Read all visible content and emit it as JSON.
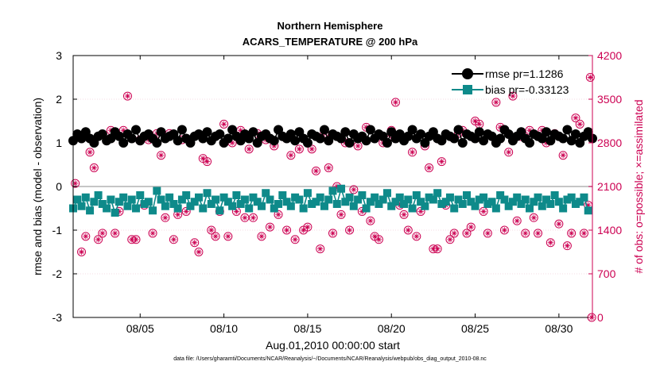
{
  "chart_data": {
    "type": "line",
    "title": [
      "Northern Hemisphere",
      "ACARS_TEMPERATURE @ 200 hPa"
    ],
    "xlabel": "Aug.01,2010 00:00:00 start",
    "ylabel_left": "rmse and bias (model - observation)",
    "ylabel_right": "# of obs: o=possible; ×=assimilated",
    "x_range": [
      "2010-08-01",
      "2010-08-32"
    ],
    "ylim_left": [
      -3,
      3
    ],
    "ylim_right": [
      0,
      4200
    ],
    "yticks_left": [
      "3",
      "2",
      "1",
      "0",
      "-1",
      "-2",
      "-3"
    ],
    "yticks_right": [
      "4200",
      "3500",
      "2800",
      "2100",
      "1400",
      "700",
      "0"
    ],
    "xticks": [
      {
        "x": "2010-08-05",
        "label": "08/05"
      },
      {
        "x": "2010-08-10",
        "label": "08/10"
      },
      {
        "x": "2010-08-15",
        "label": "08/15"
      },
      {
        "x": "2010-08-20",
        "label": "08/20"
      },
      {
        "x": "2010-08-25",
        "label": "08/25"
      },
      {
        "x": "2010-08-30",
        "label": "08/30"
      }
    ],
    "legend_position": "top-right",
    "series": [
      {
        "name": "rmse pr=1.1286",
        "axis": "left",
        "x_start": "2010-08-01",
        "step_days": 0.25,
        "values": [
          1.05,
          1.2,
          1.1,
          1.25,
          1.1,
          1.0,
          1.15,
          1.2,
          1.05,
          1.1,
          1.25,
          1.15,
          1.0,
          1.2,
          1.1,
          1.3,
          1.05,
          1.15,
          1.2,
          1.1,
          1.0,
          1.25,
          1.1,
          1.15,
          1.2,
          1.05,
          1.3,
          1.1,
          1.0,
          1.15,
          1.2,
          1.1,
          1.25,
          1.05,
          1.15,
          1.2,
          1.0,
          1.1,
          1.3,
          1.15,
          1.05,
          1.2,
          1.1,
          1.25,
          1.0,
          1.15,
          1.2,
          1.1,
          1.05,
          1.3,
          1.15,
          1.1,
          1.2,
          1.05,
          1.25,
          1.1,
          1.0,
          1.2,
          1.15,
          1.1,
          1.3,
          1.05,
          1.2,
          1.15,
          1.1,
          1.25,
          1.0,
          1.2,
          1.1,
          1.15,
          1.05,
          1.3,
          1.1,
          1.2,
          1.15,
          1.0,
          1.25,
          1.1,
          1.2,
          1.05,
          1.15,
          1.3,
          1.1,
          1.2,
          1.0,
          1.15,
          1.25,
          1.1,
          1.05,
          1.2,
          1.15,
          1.1,
          1.3,
          1.0,
          1.2,
          1.15,
          1.1,
          1.25,
          1.05,
          1.2,
          1.15,
          1.0,
          1.1,
          1.3,
          1.2,
          1.05,
          1.15,
          1.25,
          1.1,
          1.0,
          1.2,
          1.15,
          1.1,
          1.25,
          1.05,
          1.2,
          1.15,
          1.1,
          1.3,
          1.05,
          1.2,
          1.0,
          1.15,
          1.25,
          1.1
        ]
      },
      {
        "name": "bias pr=-0.33123",
        "axis": "left",
        "x_start": "2010-08-01",
        "step_days": 0.25,
        "values": [
          -0.5,
          -0.3,
          -0.45,
          -0.25,
          -0.55,
          -0.35,
          -0.2,
          -0.4,
          -0.5,
          -0.3,
          -0.6,
          -0.35,
          -0.25,
          -0.45,
          -0.3,
          -0.5,
          -0.2,
          -0.4,
          -0.35,
          -0.55,
          -0.1,
          -0.3,
          -0.45,
          -0.25,
          -0.4,
          -0.5,
          -0.3,
          -0.2,
          -0.45,
          -0.35,
          -0.25,
          -0.5,
          -0.15,
          -0.4,
          -0.3,
          -0.55,
          -0.25,
          -0.35,
          -0.45,
          -0.2,
          -0.4,
          -0.3,
          -0.5,
          -0.25,
          -0.35,
          -0.45,
          -0.15,
          -0.3,
          -0.5,
          -0.4,
          -0.2,
          -0.35,
          -0.45,
          -0.25,
          -0.3,
          -0.5,
          -0.15,
          -0.4,
          -0.35,
          -0.25,
          -0.45,
          -0.3,
          -0.1,
          -0.4,
          -0.05,
          -0.35,
          -0.25,
          -0.45,
          -0.3,
          -0.2,
          -0.5,
          -0.35,
          -0.25,
          -0.4,
          -0.3,
          -0.15,
          -0.45,
          -0.35,
          -0.25,
          -0.4,
          -0.3,
          -0.5,
          -0.2,
          -0.35,
          -0.45,
          -0.25,
          -0.3,
          -0.15,
          -0.4,
          -0.35,
          -0.25,
          -0.5,
          -0.3,
          -0.4,
          -0.2,
          -0.35,
          -0.45,
          -0.3,
          -0.25,
          -0.4,
          -0.35,
          -0.5,
          -0.2,
          -0.3,
          -0.45,
          -0.35,
          -0.25,
          -0.4,
          -0.3,
          -0.5,
          -0.35,
          -0.25,
          -0.45,
          -0.3,
          -0.4,
          -0.2,
          -0.35,
          -0.5,
          -0.3,
          -0.25,
          -0.4,
          -0.35,
          -0.25,
          -0.55
        ]
      },
      {
        "name": "possible",
        "axis": "right",
        "points": [
          [
            "2010-08-01 03:00",
            2150
          ],
          [
            "2010-08-01 12:00",
            1050
          ],
          [
            "2010-08-01 18:00",
            1300
          ],
          [
            "2010-08-02 00:00",
            2650
          ],
          [
            "2010-08-02 06:00",
            2400
          ],
          [
            "2010-08-02 12:00",
            1250
          ],
          [
            "2010-08-02 18:00",
            1350
          ],
          [
            "2010-08-03 00:00",
            2850
          ],
          [
            "2010-08-03 06:00",
            3000
          ],
          [
            "2010-08-03 12:00",
            1350
          ],
          [
            "2010-08-03 18:00",
            1700
          ],
          [
            "2010-08-04 00:00",
            3000
          ],
          [
            "2010-08-04 06:00",
            3550
          ],
          [
            "2010-08-04 12:00",
            1250
          ],
          [
            "2010-08-04 18:00",
            1250
          ],
          [
            "2010-08-05 00:00",
            2850
          ],
          [
            "2010-08-05 06:00",
            1800
          ],
          [
            "2010-08-05 12:00",
            2850
          ],
          [
            "2010-08-05 18:00",
            1350
          ],
          [
            "2010-08-06 00:00",
            2950
          ],
          [
            "2010-08-06 06:00",
            2600
          ],
          [
            "2010-08-06 12:00",
            1600
          ],
          [
            "2010-08-06 18:00",
            2950
          ],
          [
            "2010-08-07 00:00",
            1250
          ],
          [
            "2010-08-07 06:00",
            1650
          ],
          [
            "2010-08-07 12:00",
            2850
          ],
          [
            "2010-08-07 18:00",
            1700
          ],
          [
            "2010-08-08 00:00",
            2800
          ],
          [
            "2010-08-08 06:00",
            1200
          ],
          [
            "2010-08-08 12:00",
            1050
          ],
          [
            "2010-08-08 18:00",
            2550
          ],
          [
            "2010-08-09 00:00",
            2500
          ],
          [
            "2010-08-09 06:00",
            1400
          ],
          [
            "2010-08-09 12:00",
            1300
          ],
          [
            "2010-08-09 18:00",
            1700
          ],
          [
            "2010-08-10 00:00",
            3100
          ],
          [
            "2010-08-10 06:00",
            1300
          ],
          [
            "2010-08-10 12:00",
            2800
          ],
          [
            "2010-08-10 18:00",
            1700
          ],
          [
            "2010-08-11 00:00",
            3000
          ],
          [
            "2010-08-11 06:00",
            1600
          ],
          [
            "2010-08-11 12:00",
            2700
          ],
          [
            "2010-08-11 18:00",
            1600
          ],
          [
            "2010-08-12 00:00",
            2950
          ],
          [
            "2010-08-12 06:00",
            1300
          ],
          [
            "2010-08-12 12:00",
            2850
          ],
          [
            "2010-08-12 18:00",
            1450
          ],
          [
            "2010-08-13 00:00",
            2750
          ],
          [
            "2010-08-13 06:00",
            1650
          ],
          [
            "2010-08-13 12:00",
            2900
          ],
          [
            "2010-08-13 18:00",
            1400
          ],
          [
            "2010-08-14 00:00",
            2600
          ],
          [
            "2010-08-14 06:00",
            1250
          ],
          [
            "2010-08-14 12:00",
            2700
          ],
          [
            "2010-08-14 18:00",
            1400
          ],
          [
            "2010-08-15 00:00",
            1450
          ],
          [
            "2010-08-15 06:00",
            2700
          ],
          [
            "2010-08-15 12:00",
            2350
          ],
          [
            "2010-08-15 18:00",
            1100
          ],
          [
            "2010-08-16 00:00",
            2950
          ],
          [
            "2010-08-16 06:00",
            2400
          ],
          [
            "2010-08-16 12:00",
            1350
          ],
          [
            "2010-08-16 18:00",
            2100
          ],
          [
            "2010-08-17 00:00",
            1650
          ],
          [
            "2010-08-17 06:00",
            2800
          ],
          [
            "2010-08-17 12:00",
            1400
          ],
          [
            "2010-08-17 18:00",
            2050
          ],
          [
            "2010-08-18 00:00",
            2750
          ],
          [
            "2010-08-18 06:00",
            1700
          ],
          [
            "2010-08-18 12:00",
            3050
          ],
          [
            "2010-08-18 18:00",
            1550
          ],
          [
            "2010-08-19 00:00",
            1300
          ],
          [
            "2010-08-19 06:00",
            1250
          ],
          [
            "2010-08-19 12:00",
            2800
          ],
          [
            "2010-08-19 18:00",
            2850
          ],
          [
            "2010-08-20 00:00",
            3000
          ],
          [
            "2010-08-20 06:00",
            3450
          ],
          [
            "2010-08-20 12:00",
            1800
          ],
          [
            "2010-08-20 18:00",
            1650
          ],
          [
            "2010-08-21 00:00",
            1400
          ],
          [
            "2010-08-21 06:00",
            2650
          ],
          [
            "2010-08-21 12:00",
            1300
          ],
          [
            "2010-08-21 18:00",
            1700
          ],
          [
            "2010-08-22 00:00",
            2750
          ],
          [
            "2010-08-22 06:00",
            2400
          ],
          [
            "2010-08-22 12:00",
            1100
          ],
          [
            "2010-08-22 18:00",
            1100
          ],
          [
            "2010-08-23 00:00",
            2500
          ],
          [
            "2010-08-23 06:00",
            1800
          ],
          [
            "2010-08-23 12:00",
            1250
          ],
          [
            "2010-08-23 18:00",
            1350
          ],
          [
            "2010-08-24 00:00",
            2950
          ],
          [
            "2010-08-24 06:00",
            3000
          ],
          [
            "2010-08-24 12:00",
            1350
          ],
          [
            "2010-08-24 18:00",
            1450
          ],
          [
            "2010-08-25 00:00",
            3150
          ],
          [
            "2010-08-25 06:00",
            3100
          ],
          [
            "2010-08-25 12:00",
            1700
          ],
          [
            "2010-08-25 18:00",
            1350
          ],
          [
            "2010-08-26 00:00",
            2900
          ],
          [
            "2010-08-26 06:00",
            3450
          ],
          [
            "2010-08-26 12:00",
            3050
          ],
          [
            "2010-08-26 18:00",
            1400
          ],
          [
            "2010-08-27 00:00",
            2650
          ],
          [
            "2010-08-27 06:00",
            3550
          ],
          [
            "2010-08-27 12:00",
            1550
          ],
          [
            "2010-08-27 18:00",
            2900
          ],
          [
            "2010-08-28 00:00",
            1350
          ],
          [
            "2010-08-28 06:00",
            3000
          ],
          [
            "2010-08-28 12:00",
            1600
          ],
          [
            "2010-08-28 18:00",
            1350
          ],
          [
            "2010-08-29 00:00",
            3000
          ],
          [
            "2010-08-29 06:00",
            2800
          ],
          [
            "2010-08-29 12:00",
            1200
          ],
          [
            "2010-08-29 18:00",
            2950
          ],
          [
            "2010-08-30 00:00",
            1500
          ],
          [
            "2010-08-30 06:00",
            2600
          ],
          [
            "2010-08-30 12:00",
            1150
          ],
          [
            "2010-08-30 18:00",
            1350
          ],
          [
            "2010-08-31 00:00",
            3200
          ],
          [
            "2010-08-31 06:00",
            3100
          ],
          [
            "2010-08-31 12:00",
            1350
          ],
          [
            "2010-08-31 18:00",
            1800
          ],
          [
            "2010-08-31 21:00",
            3850
          ],
          [
            "2010-08-31 23:00",
            0
          ]
        ]
      },
      {
        "name": "assimilated",
        "axis": "right",
        "note_marker": "x",
        "same_points_as": "possible"
      }
    ]
  },
  "legend": {
    "rmse_label": "rmse pr=1.1286",
    "bias_label": "bias pr=-0.33123"
  },
  "footnote": "data file: /Users/gharamti/Documents/NCAR/Reanalysis/~/Documents/NCAR/Reanalysis/webpub/obs_diag_output_2010-08.nc",
  "colors": {
    "rmse": "#000000",
    "bias": "#0e8a8a",
    "obs": "#cc0052",
    "zero_line": "#b3b3b3",
    "grid_right": "#e9b8c8"
  }
}
